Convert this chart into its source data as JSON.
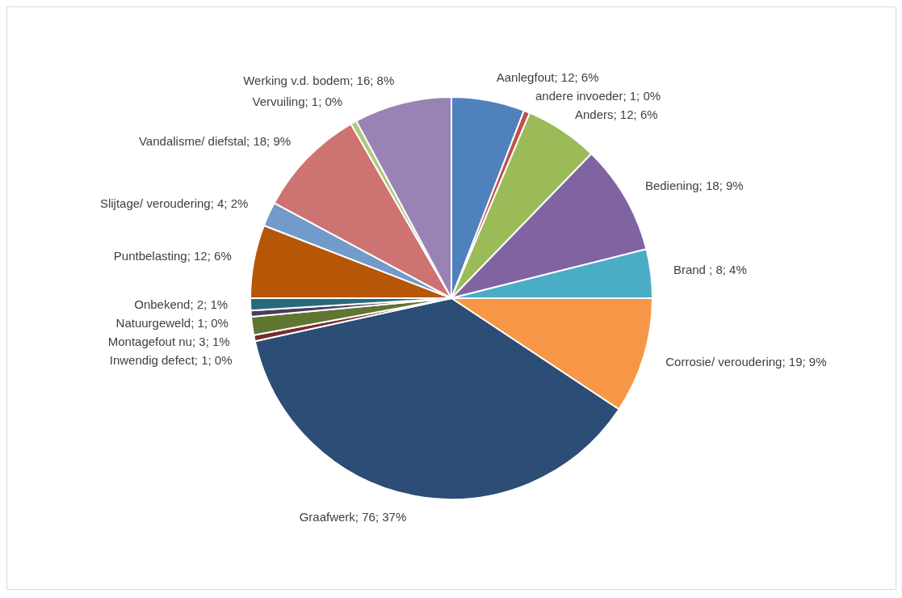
{
  "chart_data": {
    "type": "pie",
    "categories": [
      "Aanlegfout",
      "andere invoeder",
      "Anders",
      "Bediening",
      "Brand ",
      "Corrosie/ veroudering",
      "Graafwerk",
      "Inwendig defect",
      "Montagefout nu",
      "Natuurgeweld",
      "Onbekend",
      "Puntbelasting",
      "Slijtage/ veroudering",
      "Vandalisme/ diefstal",
      "Vervuiling",
      "Werking v.d. bodem"
    ],
    "values": [
      12,
      1,
      12,
      18,
      8,
      19,
      76,
      1,
      3,
      1,
      2,
      12,
      4,
      18,
      1,
      16
    ],
    "value_labels": [
      "12; 6%",
      "1; 0%",
      "12; 6%",
      "18; 9%",
      "8; 4%",
      "19; 9%",
      "76; 37%",
      "1; 0%",
      "3; 1%",
      "1; 0%",
      "2; 1%",
      "12; 6%",
      "4; 2%",
      "18; 9%",
      "1; 0%",
      "16; 8%"
    ],
    "colors": [
      "#4f81bd",
      "#c0504d",
      "#9bbb59",
      "#8064a2",
      "#4bacc6",
      "#f79646",
      "#2c4d75",
      "#772c2a",
      "#5f7530",
      "#4d3b62",
      "#276a7c",
      "#b65708",
      "#729aca",
      "#cd7371",
      "#afc97a",
      "#9983b5"
    ],
    "legend": false
  }
}
